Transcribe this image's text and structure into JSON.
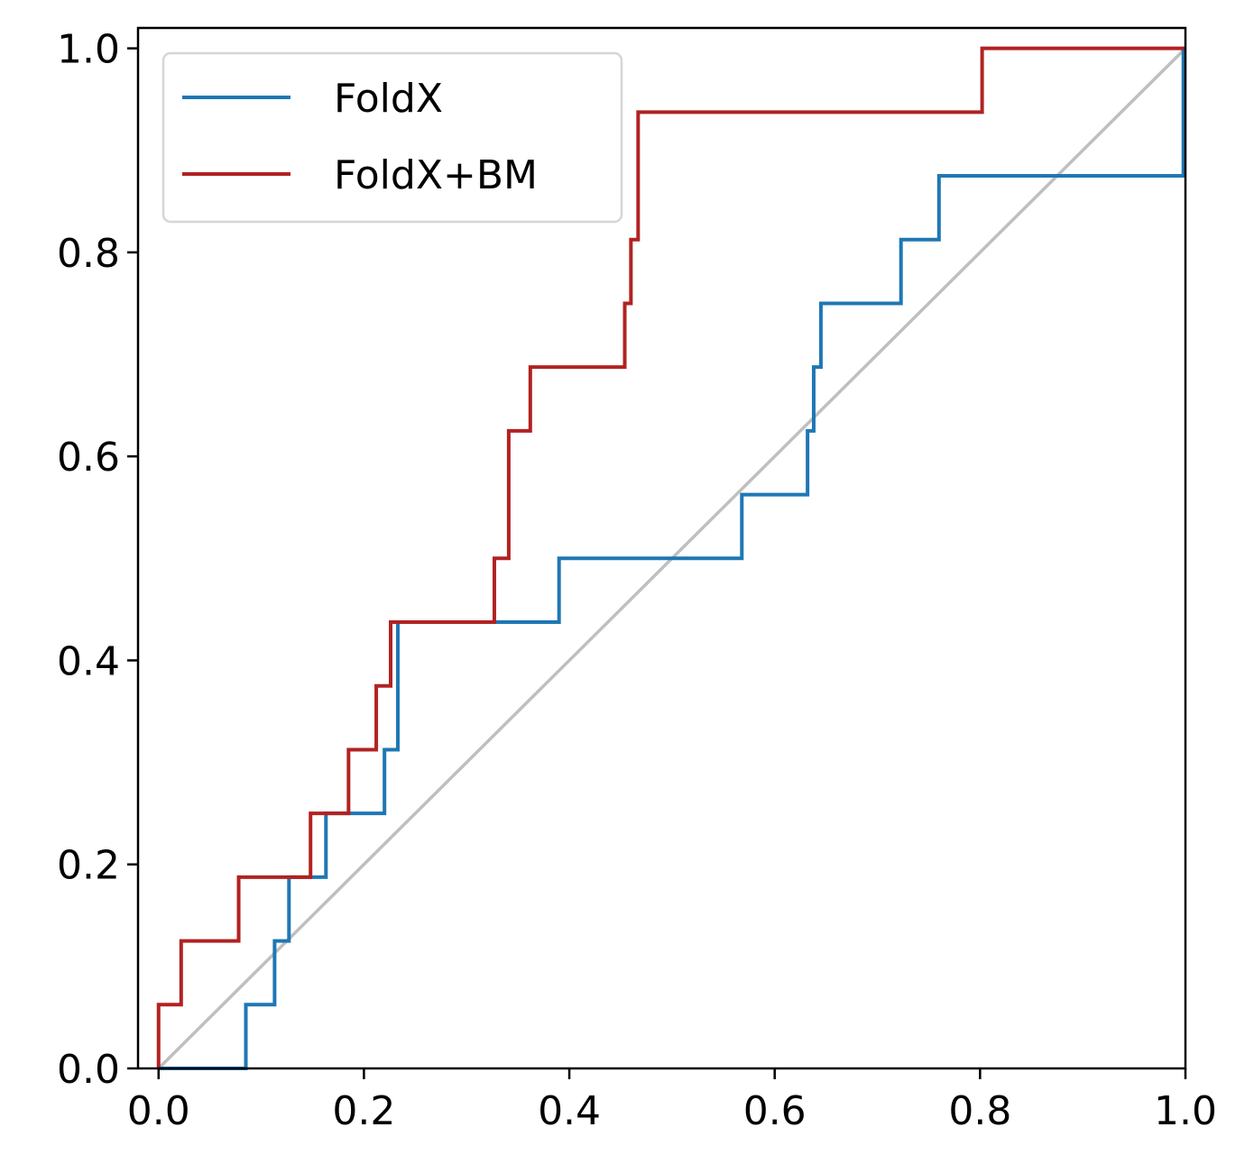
{
  "chart_data": {
    "type": "line",
    "title": "",
    "xlabel": "",
    "ylabel": "",
    "xlim": [
      -0.02,
      1.0
    ],
    "ylim": [
      0.0,
      1.02
    ],
    "xticks": [
      "0.0",
      "0.2",
      "0.4",
      "0.6",
      "0.8",
      "1.0"
    ],
    "yticks": [
      "0.0",
      "0.2",
      "0.4",
      "0.6",
      "0.8",
      "1.0"
    ],
    "grid": false,
    "legend_position": "top-left",
    "series": [
      {
        "name": "FoldX",
        "color": "#1f77b4",
        "step": true,
        "x": [
          0.0,
          0.085,
          0.085,
          0.113,
          0.113,
          0.127,
          0.127,
          0.163,
          0.163,
          0.22,
          0.22,
          0.233,
          0.233,
          0.39,
          0.39,
          0.568,
          0.568,
          0.632,
          0.632,
          0.638,
          0.638,
          0.645,
          0.645,
          0.723,
          0.723,
          0.76,
          0.76,
          0.998,
          0.998
        ],
        "y": [
          0.0,
          0.0,
          0.0625,
          0.0625,
          0.125,
          0.125,
          0.1875,
          0.1875,
          0.25,
          0.25,
          0.3125,
          0.3125,
          0.4375,
          0.4375,
          0.5,
          0.5,
          0.5625,
          0.5625,
          0.625,
          0.625,
          0.6875,
          0.6875,
          0.75,
          0.75,
          0.8125,
          0.8125,
          0.875,
          0.875,
          1.0
        ]
      },
      {
        "name": "FoldX+BM",
        "color": "#b22222",
        "step": true,
        "x": [
          0.0,
          0.0,
          0.022,
          0.022,
          0.078,
          0.078,
          0.148,
          0.148,
          0.185,
          0.185,
          0.212,
          0.212,
          0.226,
          0.226,
          0.327,
          0.327,
          0.341,
          0.341,
          0.362,
          0.362,
          0.454,
          0.454,
          0.46,
          0.46,
          0.467,
          0.467,
          0.802,
          0.802,
          1.0
        ],
        "y": [
          0.0,
          0.0625,
          0.0625,
          0.125,
          0.125,
          0.1875,
          0.1875,
          0.25,
          0.25,
          0.3125,
          0.3125,
          0.375,
          0.375,
          0.4375,
          0.4375,
          0.5,
          0.5,
          0.625,
          0.625,
          0.6875,
          0.6875,
          0.75,
          0.75,
          0.8125,
          0.8125,
          0.9375,
          0.9375,
          1.0,
          1.0
        ]
      }
    ],
    "reference_line": {
      "x": [
        0.0,
        1.0
      ],
      "y": [
        0.0,
        1.0
      ],
      "color": "#bfbfbf"
    }
  }
}
